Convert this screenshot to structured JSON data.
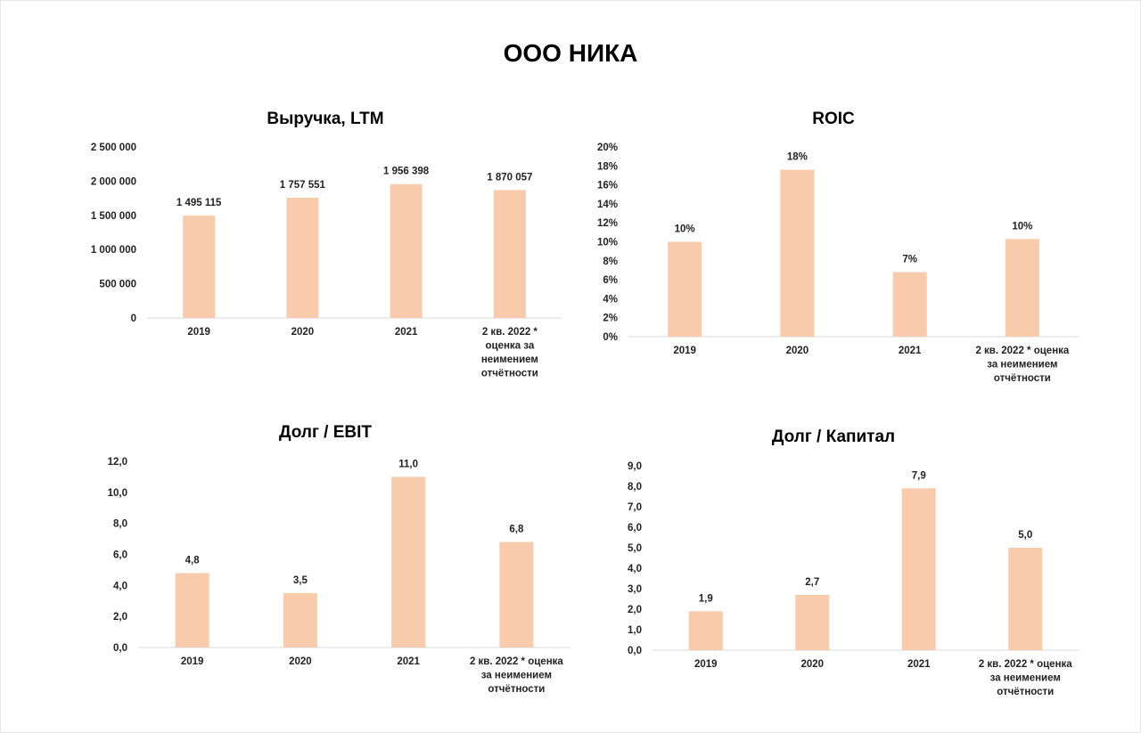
{
  "page": {
    "title": "ООО НИКА"
  },
  "chart_data": [
    {
      "type": "bar",
      "title": "Выручка, LTM",
      "categories": [
        "2019",
        "2020",
        "2021",
        "2 кв. 2022 * оценка за неимением отчётности"
      ],
      "category_lines": [
        [
          "2019"
        ],
        [
          "2020"
        ],
        [
          "2021"
        ],
        [
          "2 кв. 2022 *",
          "оценка за",
          "неимением",
          "отчётности"
        ]
      ],
      "values": [
        1495115,
        1757551,
        1956398,
        1870057
      ],
      "data_labels": [
        "1 495 115",
        "1 757 551",
        "1 956 398",
        "1 870 057"
      ],
      "yticks": [
        "0",
        "500 000",
        "1 000 000",
        "1 500 000",
        "2 000 000",
        "2 500 000"
      ],
      "ylim": [
        0,
        2500000
      ],
      "grid": false,
      "bar_color": "#f7cbab"
    },
    {
      "type": "bar",
      "title": "ROIC",
      "categories": [
        "2019",
        "2020",
        "2021",
        "2 кв. 2022 * оценка за неимением отчётности"
      ],
      "category_lines": [
        [
          "2019"
        ],
        [
          "2020"
        ],
        [
          "2021"
        ],
        [
          "2 кв. 2022 * оценка",
          "за неимением",
          "отчётности"
        ]
      ],
      "values": [
        10,
        17.6,
        6.8,
        10.3
      ],
      "data_labels": [
        "10%",
        "18%",
        "7%",
        "10%"
      ],
      "yticks": [
        "0%",
        "2%",
        "4%",
        "6%",
        "8%",
        "10%",
        "12%",
        "14%",
        "16%",
        "18%",
        "20%"
      ],
      "ylim": [
        0,
        20
      ],
      "grid": false,
      "bar_color": "#f7cbab"
    },
    {
      "type": "bar",
      "title": "Долг / EBIT",
      "categories": [
        "2019",
        "2020",
        "2021",
        "2 кв. 2022 * оценка за неимением отчётности"
      ],
      "category_lines": [
        [
          "2019"
        ],
        [
          "2020"
        ],
        [
          "2021"
        ],
        [
          "2 кв. 2022 * оценка",
          "за неимением",
          "отчётности"
        ]
      ],
      "values": [
        4.8,
        3.5,
        11.0,
        6.8
      ],
      "data_labels": [
        "4,8",
        "3,5",
        "11,0",
        "6,8"
      ],
      "yticks": [
        "0,0",
        "2,0",
        "4,0",
        "6,0",
        "8,0",
        "10,0",
        "12,0"
      ],
      "ylim": [
        0,
        12
      ],
      "grid": false,
      "bar_color": "#f7cbab"
    },
    {
      "type": "bar",
      "title": "Долг / Капитал",
      "categories": [
        "2019",
        "2020",
        "2021",
        "2 кв. 2022 * оценка за неимением отчётности"
      ],
      "category_lines": [
        [
          "2019"
        ],
        [
          "2020"
        ],
        [
          "2021"
        ],
        [
          "2 кв. 2022 * оценка",
          "за неимением",
          "отчётности"
        ]
      ],
      "values": [
        1.9,
        2.7,
        7.9,
        5.0
      ],
      "data_labels": [
        "1,9",
        "2,7",
        "7,9",
        "5,0"
      ],
      "yticks": [
        "0,0",
        "1,0",
        "2,0",
        "3,0",
        "4,0",
        "5,0",
        "6,0",
        "7,0",
        "8,0",
        "9,0"
      ],
      "ylim": [
        0,
        9
      ],
      "grid": false,
      "bar_color": "#f7cbab"
    }
  ]
}
